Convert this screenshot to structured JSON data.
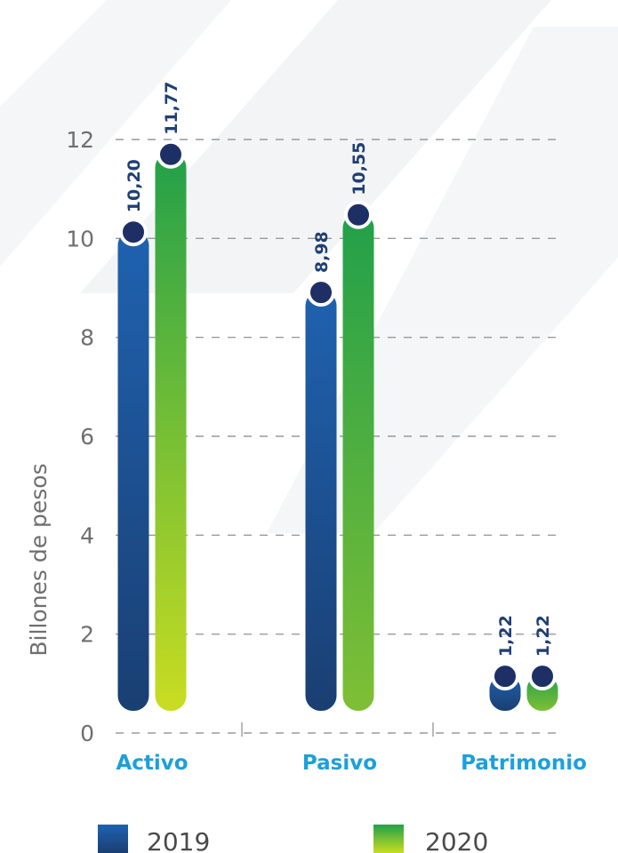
{
  "chart_data": {
    "type": "bar",
    "categories": [
      "Activo",
      "Pasivo",
      "Patrimonio"
    ],
    "series": [
      {
        "name": "2019",
        "values": [
          10.2,
          8.98,
          1.22
        ],
        "labels": [
          "10,20",
          "8,98",
          "1,22"
        ]
      },
      {
        "name": "2020",
        "values": [
          11.77,
          10.55,
          1.22
        ],
        "labels": [
          "11,77",
          "10,55",
          "1,22"
        ]
      }
    ],
    "yticks": [
      0,
      2,
      4,
      6,
      8,
      10,
      12
    ],
    "ylim": [
      0,
      12
    ],
    "ylabel": "Billones de pesos",
    "xlabel": "",
    "grid": true,
    "legend_position": "bottom"
  },
  "colors": {
    "s2019_top": "#1f62b0",
    "s2019_bottom": "#1a3f72",
    "s2020_top": "#22a04a",
    "s2020_bottom": "#c9dd21",
    "category_label": "#1ba0dc",
    "marker": "#1e2f66",
    "grid": "#9a9a9a",
    "watermark": "#f3f4f5"
  }
}
